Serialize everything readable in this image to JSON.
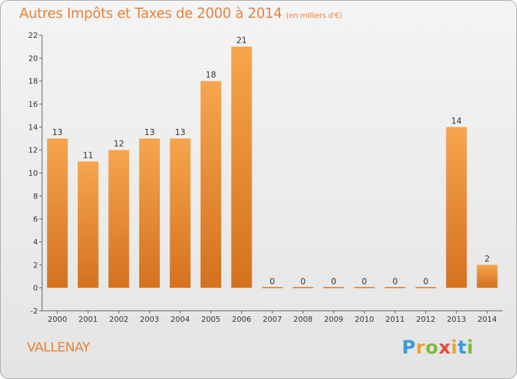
{
  "chart_data": {
    "type": "bar",
    "title": "Autres Impôts et Taxes de 2000 à 2014",
    "subtitle": "(en milliers d'€)",
    "categories": [
      "2000",
      "2001",
      "2002",
      "2003",
      "2004",
      "2005",
      "2006",
      "2007",
      "2008",
      "2009",
      "2010",
      "2011",
      "2012",
      "2013",
      "2014"
    ],
    "values": [
      13,
      11,
      12,
      13,
      13,
      18,
      21,
      0,
      0,
      0,
      0,
      0,
      0,
      14,
      2
    ],
    "ylim": [
      -2,
      22
    ],
    "yticks": [
      -2,
      0,
      2,
      4,
      6,
      8,
      10,
      12,
      14,
      16,
      18,
      20,
      22
    ],
    "grid": false,
    "xlabel": "",
    "ylabel": ""
  },
  "commune": "VALLENAY",
  "logo": {
    "letters": [
      "P",
      "r",
      "o",
      "x",
      "i",
      "t",
      "i"
    ],
    "colors": [
      "#3b9bd8",
      "#f0a030",
      "#7dbb3c",
      "#e84a3a",
      "#f0a030",
      "#3b9bd8",
      "#7dbb3c"
    ]
  },
  "colors": {
    "bar_light": "#f6a54e",
    "bar_dark": "#d4711f",
    "text": "#e8823a",
    "axis": "#555555"
  }
}
